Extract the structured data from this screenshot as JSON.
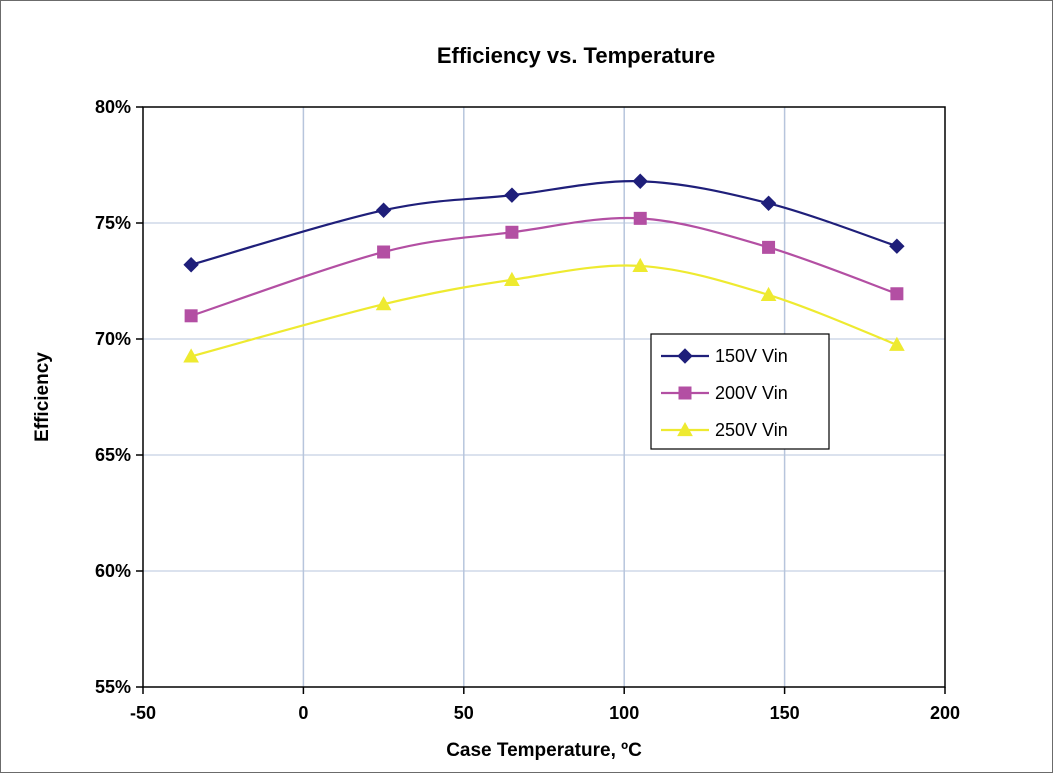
{
  "chart_data": {
    "type": "line",
    "title": "Efficiency vs. Temperature",
    "xlabel": "Case Temperature, ºC",
    "ylabel": "Efficiency",
    "xlim": [
      -50,
      200
    ],
    "ylim": [
      55,
      80
    ],
    "x_ticks": [
      -50,
      0,
      50,
      100,
      150,
      200
    ],
    "x_tick_labels": [
      "-50",
      "0",
      "50",
      "100",
      "150",
      "200"
    ],
    "y_ticks": [
      55,
      60,
      65,
      70,
      75,
      80
    ],
    "y_tick_labels": [
      "55%",
      "60%",
      "65%",
      "70%",
      "75%",
      "80%"
    ],
    "grid": true,
    "smooth": true,
    "legend_position": "right-center",
    "x": [
      -35,
      25,
      65,
      105,
      145,
      185
    ],
    "series": [
      {
        "name": "150V Vin",
        "values": [
          73.2,
          75.55,
          76.2,
          76.8,
          75.85,
          74.0
        ],
        "color": "#1f1f7a",
        "marker": "diamond"
      },
      {
        "name": "200V Vin",
        "values": [
          71.0,
          73.75,
          74.6,
          75.2,
          73.95,
          71.95
        ],
        "color": "#b34fa3",
        "marker": "square"
      },
      {
        "name": "250V Vin",
        "values": [
          69.25,
          71.5,
          72.55,
          73.15,
          71.9,
          69.75
        ],
        "color": "#eeea30",
        "marker": "triangle"
      }
    ]
  }
}
